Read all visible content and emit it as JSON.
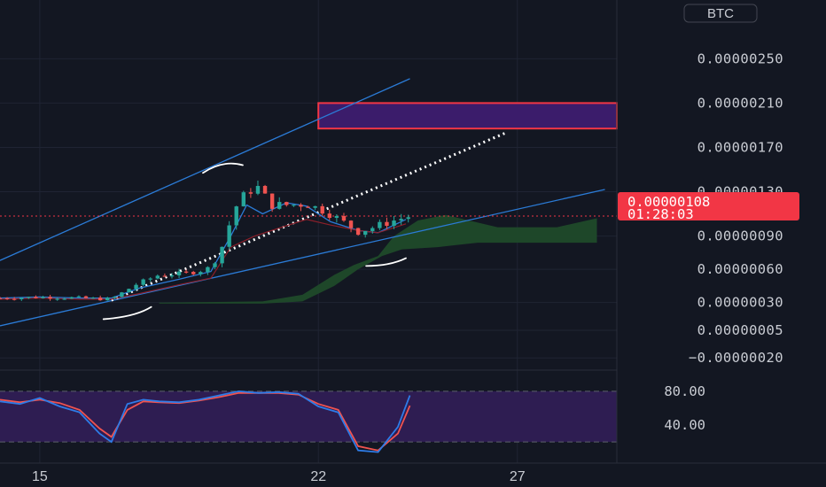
{
  "currency_button": "BTC",
  "colors": {
    "background": "#131722",
    "grid": "#1f2433",
    "up": "#26a69a",
    "down": "#ef5350",
    "current_price_bg": "#f23645",
    "channel_line": "#2b7bd6",
    "resistance_box_fill": "#3b1c6b",
    "resistance_box_border": "#f23645",
    "cloud": "#1f4a2a",
    "stoch_band": "#2e1d52",
    "stoch_k": "#2e7ce8",
    "stoch_d": "#ef5350"
  },
  "current_price": {
    "value": "0.00000108",
    "countdown": "01:28:03"
  },
  "chart_data": [
    {
      "type": "candlestick",
      "title": "",
      "price_axis_labels": [
        "0.00000250",
        "0.00000210",
        "0.00000170",
        "0.00000130",
        "0.00000090",
        "0.00000060",
        "0.00000030",
        "0.00000005",
        "−0.00000020"
      ],
      "price_axis_values": [
        2.5e-06,
        2.1e-06,
        1.7e-06,
        1.3e-06,
        9e-07,
        6e-07,
        3e-07,
        5e-08,
        -2e-07
      ],
      "date_labels": [
        "15",
        "22",
        "27"
      ],
      "date_ticks": [
        15,
        22,
        27
      ],
      "ylim": [
        -3.1e-07,
        3.03e-06
      ],
      "xlim": [
        14.0,
        29.5
      ],
      "grid": true,
      "annotations": {
        "resistance_zone": {
          "x_start": 22.0,
          "y_low": 1.87e-06,
          "y_high": 2.1e-06
        },
        "channel_upper": [
          [
            14.0,
            6.8e-07
          ],
          [
            24.3,
            2.32e-06
          ]
        ],
        "channel_lower": [
          [
            14.0,
            9e-08
          ],
          [
            29.2,
            1.32e-06
          ]
        ],
        "dotted_projection": [
          [
            16.8,
            3.2e-07
          ],
          [
            26.7,
            1.83e-06
          ]
        ],
        "current_price_line": 1.08e-06
      }
    },
    {
      "type": "line",
      "title": "",
      "osc_axis_labels": [
        "80.00",
        "40.00"
      ],
      "osc_axis_values": [
        80,
        40
      ],
      "ylim": [
        -5,
        105
      ],
      "band": [
        20,
        80
      ],
      "series": [
        {
          "x": [
            14.0,
            14.5,
            15.0,
            15.5,
            16.0,
            16.5,
            16.8,
            17.2,
            17.6,
            18.0,
            18.5,
            19.0,
            19.5,
            20.0,
            20.5,
            21.0,
            21.5,
            22.0,
            22.5,
            23.0,
            23.5,
            24.0,
            24.3
          ],
          "values": [
            68,
            65,
            72,
            62,
            55,
            30,
            20,
            65,
            70,
            68,
            67,
            70,
            75,
            80,
            78,
            79,
            77,
            62,
            55,
            10,
            8,
            38,
            75
          ]
        },
        {
          "x": [
            14.0,
            14.5,
            15.0,
            15.5,
            16.0,
            16.5,
            16.8,
            17.2,
            17.6,
            18.0,
            18.5,
            19.0,
            19.5,
            20.0,
            20.5,
            21.0,
            21.5,
            22.0,
            22.5,
            23.0,
            23.5,
            24.0,
            24.3
          ],
          "values": [
            70,
            67,
            70,
            66,
            58,
            36,
            26,
            58,
            68,
            67,
            66,
            69,
            73,
            78,
            78,
            78,
            76,
            65,
            58,
            15,
            10,
            30,
            63
          ]
        }
      ]
    }
  ]
}
